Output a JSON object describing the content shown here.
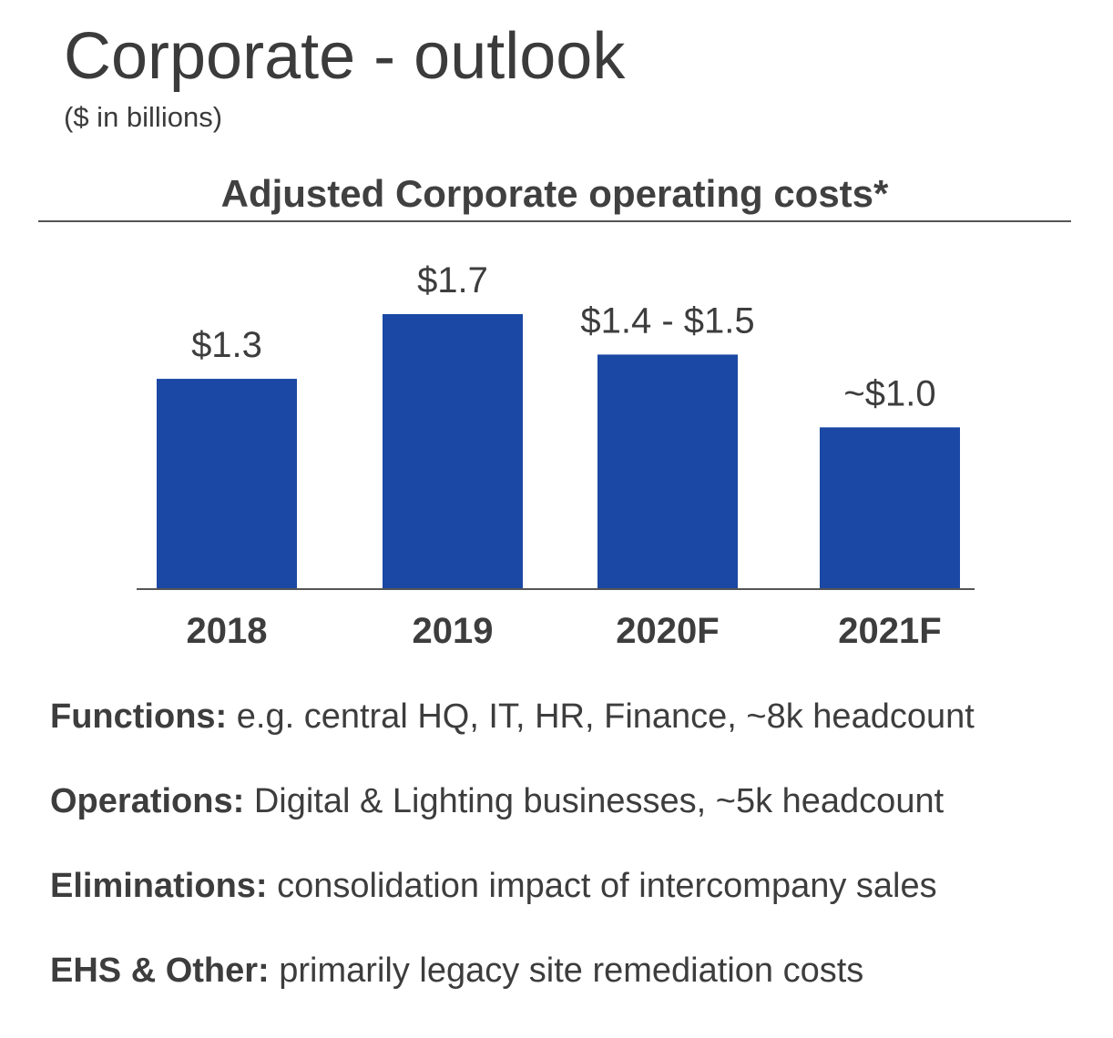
{
  "header": {
    "title": "Corporate - outlook",
    "subtitle": "($ in billions)"
  },
  "chart_data": {
    "type": "bar",
    "title": "Adjusted Corporate operating costs*",
    "categories": [
      "2018",
      "2019",
      "2020F",
      "2021F"
    ],
    "values": [
      1.3,
      1.7,
      1.45,
      1.0
    ],
    "data_labels": [
      "$1.3",
      "$1.7",
      "$1.4 - $1.5",
      "~$1.0"
    ],
    "xlabel": "",
    "ylabel": "",
    "ylim": [
      0,
      1.7
    ],
    "grid": false,
    "legend": "none",
    "bar_color": "#1a48a4",
    "axis_color": "#555555"
  },
  "notes": [
    {
      "label": "Functions:",
      "text": "e.g. central HQ, IT, HR, Finance, ~8k headcount"
    },
    {
      "label": "Operations:",
      "text": "Digital & Lighting businesses, ~5k headcount"
    },
    {
      "label": "Eliminations:",
      "text": "consolidation impact of intercompany sales"
    },
    {
      "label": "EHS & Other:",
      "text": "primarily legacy site remediation costs"
    }
  ]
}
